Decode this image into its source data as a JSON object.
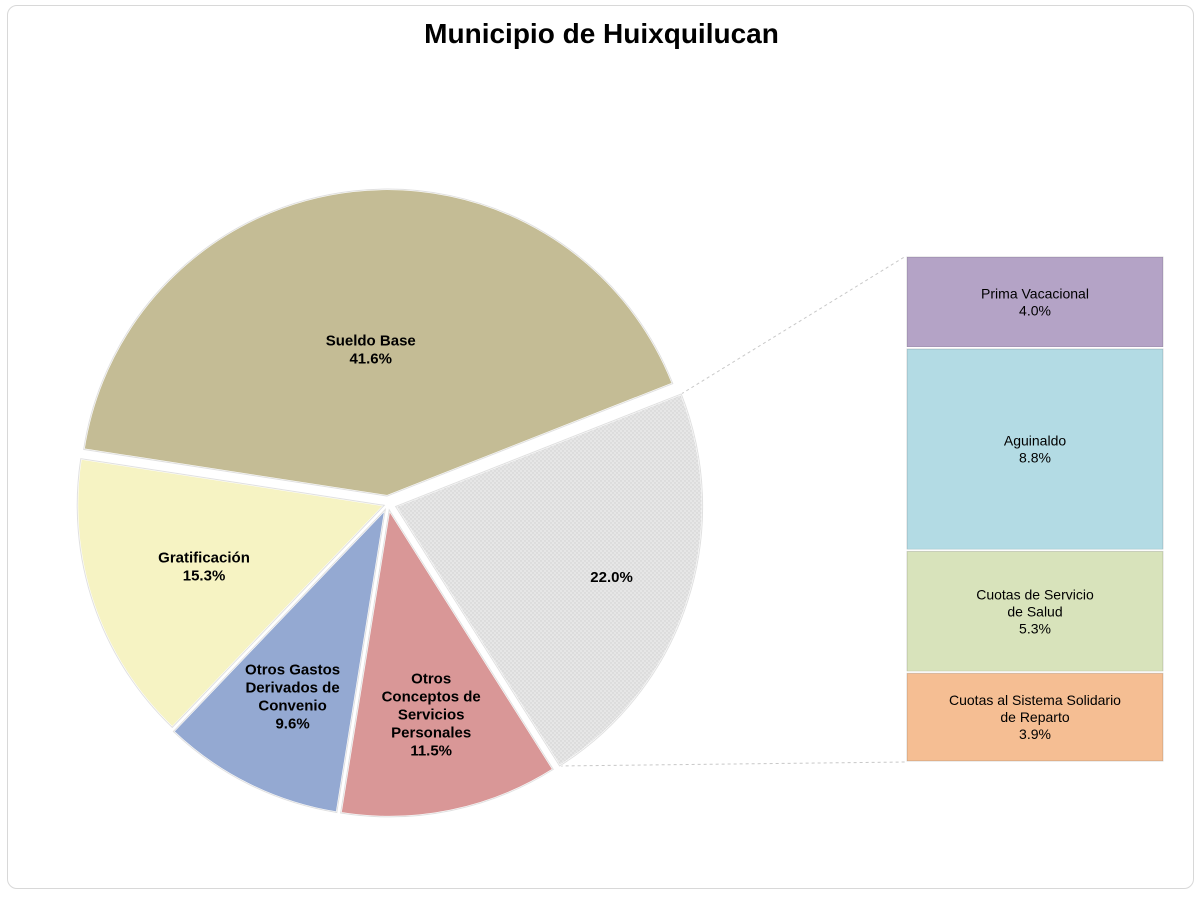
{
  "chart_data": {
    "type": "pie",
    "subtype": "pie-of-bar",
    "title": "Municipio de Huixquilucan",
    "slices": [
      {
        "lines": [
          "Sueldo Base"
        ],
        "value": 41.6,
        "label": "41.6%",
        "color": "#c4bc95"
      },
      {
        "lines": [
          "Gratificación"
        ],
        "value": 15.3,
        "label": "15.3%",
        "color": "#f6f3c3"
      },
      {
        "lines": [
          "Otros Gastos",
          "Derivados de",
          "Convenio"
        ],
        "value": 9.6,
        "label": "9.6%",
        "color": "#94a9d2"
      },
      {
        "lines": [
          "Otros",
          "Conceptos de",
          "Servicios",
          "Personales"
        ],
        "value": 11.5,
        "label": "11.5%",
        "color": "#d99797"
      },
      {
        "lines": [],
        "value": 22.0,
        "label": "22.0%",
        "color": "#e3e3e3"
      }
    ],
    "breakdown": [
      {
        "lines": [
          "Prima Vacacional"
        ],
        "value": 4.0,
        "label": "4.0%",
        "color": "#b4a3c6"
      },
      {
        "lines": [
          "Aguinaldo"
        ],
        "value": 8.8,
        "label": "8.8%",
        "color": "#b3dbe4"
      },
      {
        "lines": [
          "Cuotas de Servicio",
          "de Salud"
        ],
        "value": 5.3,
        "label": "5.3%",
        "color": "#d8e3bb"
      },
      {
        "lines": [
          "Cuotas al Sistema Solidario",
          "de Reparto"
        ],
        "value": 3.9,
        "label": "3.9%",
        "color": "#f5be93"
      }
    ]
  }
}
